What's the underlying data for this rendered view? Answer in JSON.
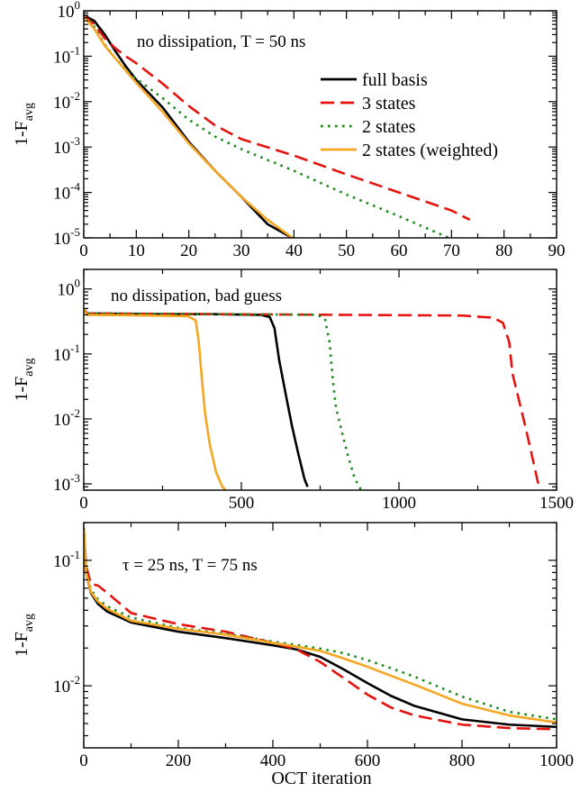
{
  "chart_data": [
    {
      "type": "line",
      "title": "",
      "annotation": "no dissipation, T = 50 ns",
      "xlabel": "",
      "ylabel": "1-F",
      "ylabel_sub": "avg",
      "xscale": "linear",
      "yscale": "log",
      "xlim": [
        0,
        90
      ],
      "ylim": [
        1e-05,
        1
      ],
      "xticks": [
        0,
        10,
        20,
        30,
        40,
        50,
        60,
        70,
        80,
        90
      ],
      "xtick_labels": [
        "0",
        "10",
        "20",
        "30",
        "40",
        "50",
        "60",
        "70",
        "80",
        "90"
      ],
      "yticks": [
        1,
        0.1,
        0.01,
        0.001,
        0.0001,
        1e-05
      ],
      "ytick_labels": [
        {
          "base": "10",
          "exp": "0"
        },
        {
          "base": "10",
          "exp": "-1"
        },
        {
          "base": "10",
          "exp": "-2"
        },
        {
          "base": "10",
          "exp": "-3"
        },
        {
          "base": "10",
          "exp": "-4"
        },
        {
          "base": "10",
          "exp": "-5"
        }
      ],
      "grid": false,
      "legend": {
        "placement": "top-right"
      },
      "series": [
        {
          "name": "full basis",
          "color": "#000000",
          "dash": "solid",
          "x": [
            0,
            2,
            4,
            6,
            8,
            10,
            15,
            20,
            25,
            30,
            35,
            40
          ],
          "y": [
            0.8,
            0.6,
            0.3,
            0.13,
            0.06,
            0.03,
            0.0075,
            0.0013,
            0.0003,
            8e-05,
            2e-05,
            9.5e-06
          ]
        },
        {
          "name": "3 states",
          "color": "#e3140f",
          "dash": "dashed",
          "x": [
            0,
            2,
            4,
            6,
            8,
            10,
            15,
            20,
            25,
            30,
            40,
            50,
            60,
            70,
            73.5
          ],
          "y": [
            0.8,
            0.5,
            0.25,
            0.15,
            0.1,
            0.07,
            0.025,
            0.008,
            0.003,
            0.0015,
            0.00065,
            0.00025,
            0.0001,
            4e-05,
            2.5e-05
          ]
        },
        {
          "name": "2 states",
          "color": "#1c8c1c",
          "dash": "dotted",
          "x": [
            0,
            2,
            4,
            6,
            8,
            10,
            15,
            20,
            25,
            30,
            40,
            50,
            60,
            69.5
          ],
          "y": [
            0.8,
            0.45,
            0.18,
            0.09,
            0.05,
            0.032,
            0.012,
            0.004,
            0.0017,
            0.0009,
            0.0003,
            9e-05,
            3e-05,
            1e-05
          ]
        },
        {
          "name": "2 states (weighted)",
          "color": "#f5a623",
          "dash": "solid",
          "x": [
            0,
            2,
            4,
            6,
            8,
            10,
            15,
            20,
            25,
            30,
            35,
            40
          ],
          "y": [
            0.75,
            0.4,
            0.17,
            0.09,
            0.048,
            0.026,
            0.006,
            0.0012,
            0.0003,
            8e-05,
            2.5e-05,
            9.5e-06
          ]
        }
      ]
    },
    {
      "type": "line",
      "title": "",
      "annotation": "no dissipation, bad guess",
      "xlabel": "",
      "ylabel": "1-F",
      "ylabel_sub": "avg",
      "xscale": "linear",
      "yscale": "log",
      "xlim": [
        0,
        1500
      ],
      "ylim": [
        0.0008,
        2
      ],
      "xticks": [
        0,
        500,
        1000,
        1500
      ],
      "xtick_labels": [
        "0",
        "500",
        "1000",
        "1500"
      ],
      "yticks": [
        1,
        0.1,
        0.01,
        0.001
      ],
      "ytick_labels": [
        {
          "base": "10",
          "exp": "0"
        },
        {
          "base": "10",
          "exp": "-1"
        },
        {
          "base": "10",
          "exp": "-2"
        },
        {
          "base": "10",
          "exp": "-3"
        }
      ],
      "grid": false,
      "series": [
        {
          "name": "full basis",
          "color": "#000000",
          "dash": "solid",
          "x": [
            0,
            10,
            200,
            400,
            560,
            590,
            605,
            620,
            640,
            660,
            680,
            700,
            710
          ],
          "y": [
            0.5,
            0.42,
            0.41,
            0.41,
            0.4,
            0.37,
            0.25,
            0.08,
            0.025,
            0.008,
            0.003,
            0.0012,
            0.0009
          ]
        },
        {
          "name": "3 states",
          "color": "#e3140f",
          "dash": "dashed",
          "x": [
            0,
            10,
            400,
            800,
            1200,
            1300,
            1330,
            1350,
            1360,
            1380,
            1400,
            1420,
            1440,
            1450
          ],
          "y": [
            0.5,
            0.42,
            0.41,
            0.4,
            0.39,
            0.36,
            0.3,
            0.15,
            0.05,
            0.02,
            0.008,
            0.003,
            0.0011,
            0.0008
          ]
        },
        {
          "name": "2 states",
          "color": "#1c8c1c",
          "dash": "dotted",
          "x": [
            0,
            10,
            400,
            740,
            765,
            780,
            790,
            800,
            820,
            840,
            860,
            880
          ],
          "y": [
            0.5,
            0.42,
            0.41,
            0.4,
            0.35,
            0.15,
            0.04,
            0.015,
            0.006,
            0.0025,
            0.0012,
            0.0008
          ]
        },
        {
          "name": "2 states (weighted)",
          "color": "#f5a623",
          "dash": "solid",
          "x": [
            0,
            10,
            200,
            330,
            355,
            365,
            375,
            385,
            400,
            420,
            440,
            450
          ],
          "y": [
            0.5,
            0.4,
            0.39,
            0.38,
            0.33,
            0.15,
            0.04,
            0.012,
            0.004,
            0.0015,
            0.0009,
            0.0008
          ]
        }
      ]
    },
    {
      "type": "line",
      "title": "",
      "annotation": "τ = 25 ns, T = 75 ns",
      "xlabel": "OCT iteration",
      "ylabel": "1-F",
      "ylabel_sub": "avg",
      "xscale": "linear",
      "yscale": "log",
      "xlim": [
        0,
        1000
      ],
      "ylim": [
        0.0032,
        0.2
      ],
      "xticks": [
        0,
        200,
        400,
        600,
        800,
        1000
      ],
      "xtick_labels": [
        "0",
        "200",
        "400",
        "600",
        "800",
        "1000"
      ],
      "yticks": [
        0.1,
        0.01
      ],
      "ytick_labels": [
        {
          "base": "10",
          "exp": "-1"
        },
        {
          "base": "10",
          "exp": "-2"
        }
      ],
      "grid": false,
      "series": [
        {
          "name": "full basis",
          "color": "#000000",
          "dash": "solid",
          "x": [
            0,
            5,
            15,
            30,
            50,
            100,
            200,
            300,
            400,
            450,
            500,
            550,
            600,
            650,
            700,
            800,
            900,
            1000
          ],
          "y": [
            0.18,
            0.08,
            0.055,
            0.045,
            0.039,
            0.032,
            0.027,
            0.024,
            0.021,
            0.0195,
            0.017,
            0.0135,
            0.0105,
            0.0083,
            0.0069,
            0.0054,
            0.0049,
            0.0047
          ]
        },
        {
          "name": "3 states",
          "color": "#e3140f",
          "dash": "dashed",
          "x": [
            0,
            5,
            15,
            30,
            50,
            100,
            200,
            300,
            400,
            450,
            500,
            550,
            600,
            650,
            700,
            800,
            900,
            1000
          ],
          "y": [
            0.18,
            0.09,
            0.065,
            0.063,
            0.055,
            0.038,
            0.031,
            0.027,
            0.022,
            0.0195,
            0.0155,
            0.0115,
            0.0085,
            0.0067,
            0.0058,
            0.0049,
            0.0046,
            0.0045
          ]
        },
        {
          "name": "2 states",
          "color": "#1c8c1c",
          "dash": "dotted",
          "x": [
            0,
            5,
            15,
            30,
            50,
            100,
            200,
            300,
            400,
            450,
            500,
            550,
            600,
            650,
            700,
            800,
            900,
            1000
          ],
          "y": [
            0.18,
            0.085,
            0.058,
            0.049,
            0.043,
            0.035,
            0.029,
            0.026,
            0.0225,
            0.0212,
            0.0198,
            0.0182,
            0.016,
            0.0138,
            0.0118,
            0.0082,
            0.0062,
            0.0054
          ]
        },
        {
          "name": "2 states (weighted)",
          "color": "#f5a623",
          "dash": "solid",
          "x": [
            0,
            5,
            15,
            30,
            50,
            100,
            200,
            300,
            400,
            450,
            500,
            550,
            600,
            650,
            700,
            800,
            900,
            1000
          ],
          "y": [
            0.18,
            0.08,
            0.056,
            0.047,
            0.041,
            0.033,
            0.0285,
            0.0255,
            0.022,
            0.0205,
            0.019,
            0.0165,
            0.0142,
            0.012,
            0.0102,
            0.0072,
            0.0058,
            0.0051
          ]
        }
      ]
    }
  ]
}
